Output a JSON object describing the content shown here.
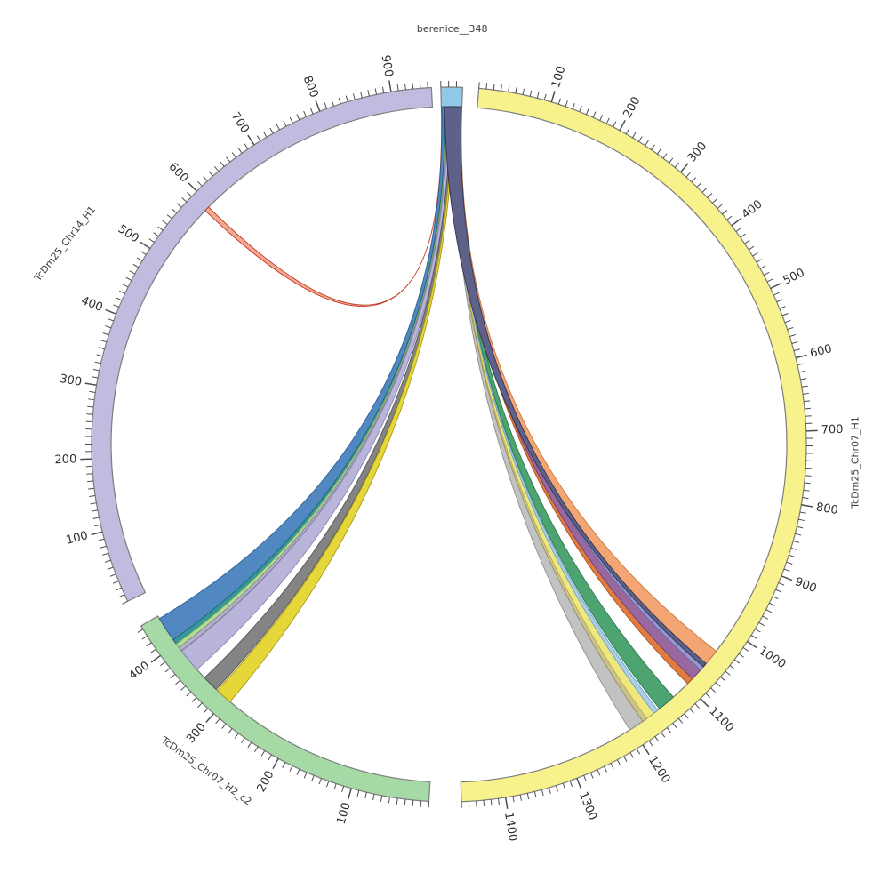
{
  "page": {
    "background": "#ffffff"
  },
  "chart_data": {
    "type": "chord",
    "title": "berenice__348",
    "description": "Circular synteny (circos-style) plot linking query contig berenice__348 to three reference sequences via colored ribbons",
    "sectors": [
      {
        "name": "berenice__348",
        "color": "#92c8e8",
        "edge_color": "#7d7d7d",
        "start_deg": -1.3,
        "end_deg": 2.2,
        "length": 28,
        "tick_step": 10,
        "label_step": 100,
        "tick_labels": [],
        "label": {
          "deg": 0.45,
          "r": 467,
          "rot": 0
        }
      },
      {
        "name": "TcDm25_Chr07_H1",
        "color": "#f8f28c",
        "edge_color": "#7d7d7d",
        "start_deg": 4.8,
        "end_deg": 178.0,
        "length": 1460,
        "tick_step": 10,
        "label_step": 100,
        "tick_labels": [
          100,
          200,
          300,
          400,
          500,
          600,
          700,
          800,
          900,
          1000,
          1100,
          1200,
          1300,
          1400
        ],
        "label": {
          "deg": 92.5,
          "r": 458,
          "rot": -90
        }
      },
      {
        "name": "TcDm25_Chr07_H2_c2",
        "color": "#a5d9a5",
        "edge_color": "#7d7d7d",
        "start_deg": 183.2,
        "end_deg": 239.5,
        "length": 445,
        "tick_step": 10,
        "label_step": 100,
        "tick_labels": [
          100,
          200,
          300,
          400
        ],
        "label": {
          "deg": 216.6,
          "r": 458,
          "rot": 36
        }
      },
      {
        "name": "TcDm25_Chr14_H1",
        "color": "#c0bcdf",
        "edge_color": "#7d7d7d",
        "start_deg": 244.0,
        "end_deg": 357.2,
        "length": 955,
        "tick_step": 10,
        "label_step": 100,
        "tick_labels": [
          100,
          200,
          300,
          400,
          500,
          600,
          700,
          800,
          900
        ],
        "label": {
          "deg": 297.6,
          "r": 487,
          "rot": -52
        }
      }
    ],
    "ribbons": [
      {
        "name": "link-salmon",
        "fill": "#f5a98e",
        "stroke": "#c0392b",
        "src": [
          0.0,
          0.5
        ],
        "tgt": "TcDm25_Chr14_H1",
        "range": [
          589,
          596
        ]
      },
      {
        "name": "link-blue",
        "fill": "#5188c2",
        "stroke": "#2e5e91",
        "src": [
          0.8,
          5.2
        ],
        "tgt": "TcDm25_Chr07_H2_c2",
        "range": [
          407,
          441
        ]
      },
      {
        "name": "link-teal",
        "fill": "#35969b",
        "stroke": "#1f6b70",
        "src": [
          5.2,
          6.6
        ],
        "tgt": "TcDm25_Chr07_H2_c2",
        "range": [
          400,
          407
        ]
      },
      {
        "name": "link-lightgreen",
        "fill": "#b4dc92",
        "stroke": "#7fae5e",
        "src": [
          6.6,
          7.6
        ],
        "tgt": "TcDm25_Chr07_H2_c2",
        "range": [
          394,
          400
        ]
      },
      {
        "name": "link-graystrip",
        "fill": "#b6b4c8",
        "stroke": "#84819e",
        "src": [
          7.6,
          8.4
        ],
        "tgt": "TcDm25_Chr07_H2_c2",
        "range": [
          389,
          394
        ]
      },
      {
        "name": "link-lavender",
        "fill": "#b9b5da",
        "stroke": "#8a86b0",
        "src": [
          8.4,
          12.2
        ],
        "tgt": "TcDm25_Chr07_H2_c2",
        "range": [
          356,
          388
        ]
      },
      {
        "name": "link-darkgray",
        "fill": "#848484",
        "stroke": "#555555",
        "src": [
          12.2,
          14.8
        ],
        "tgt": "TcDm25_Chr07_H2_c2",
        "range": [
          319,
          341
        ]
      },
      {
        "name": "link-yellow",
        "fill": "#e5d73a",
        "stroke": "#a89a12",
        "src": [
          14.8,
          17.2
        ],
        "tgt": "TcDm25_Chr07_H2_c2",
        "range": [
          294,
          317
        ]
      },
      {
        "name": "link-silver",
        "fill": "#c2c2c2",
        "stroke": "#8f8f8f",
        "src": [
          17.2,
          19.2
        ],
        "tgt": "TcDm25_Chr07_H1",
        "range": [
          1182,
          1204
        ]
      },
      {
        "name": "link-khaki",
        "fill": "#ccc290",
        "stroke": "#9a9060",
        "src": [
          19.2,
          20.0
        ],
        "tgt": "TcDm25_Chr07_H1",
        "range": [
          1175,
          1182
        ]
      },
      {
        "name": "link-paleyellow",
        "fill": "#efe87e",
        "stroke": "#bdb34e",
        "src": [
          20.0,
          21.2
        ],
        "tgt": "TcDm25_Chr07_H1",
        "range": [
          1162,
          1175
        ]
      },
      {
        "name": "link-lightblue",
        "fill": "#a9d0e8",
        "stroke": "#76a4c4",
        "src": [
          21.2,
          22.0
        ],
        "tgt": "TcDm25_Chr07_H1",
        "range": [
          1155,
          1162
        ]
      },
      {
        "name": "link-seagreen",
        "fill": "#4da470",
        "stroke": "#2d7a4e",
        "src": [
          22.0,
          24.6
        ],
        "tgt": "TcDm25_Chr07_H1",
        "range": [
          1126,
          1152
        ]
      },
      {
        "name": "link-darkorange",
        "fill": "#e07b41",
        "stroke": "#ad5420",
        "src": [
          24.6,
          25.6
        ],
        "tgt": "TcDm25_Chr07_H1",
        "range": [
          1088,
          1098
        ]
      },
      {
        "name": "link-mauve",
        "fill": "#99689f",
        "stroke": "#6d4273",
        "src": [
          25.6,
          26.7
        ],
        "tgt": "TcDm25_Chr07_H1",
        "range": [
          1071,
          1088
        ]
      },
      {
        "name": "link-periwinkle",
        "fill": "#9599ce",
        "stroke": "#6a6ea8",
        "src": [
          26.7,
          27.3
        ],
        "tgt": "TcDm25_Chr07_H1",
        "range": [
          1065,
          1071
        ]
      },
      {
        "name": "link-lightorange",
        "fill": "#f3a673",
        "stroke": "#c87a42",
        "src": [
          27.3,
          28.0
        ],
        "tgt": "TcDm25_Chr07_H1",
        "range": [
          1036,
          1059
        ]
      },
      {
        "name": "link-slate",
        "fill": "#5e628b",
        "stroke": "#32344f",
        "src": [
          4.5,
          27.5
        ],
        "tgt": "TcDm25_Chr07_H1",
        "range": [
          1059,
          1065
        ]
      }
    ],
    "style": {
      "tick_color": "#4d4d4d",
      "tick_label_color": "#2e2e2e",
      "sector_label_color": "#3c3c3c"
    }
  }
}
